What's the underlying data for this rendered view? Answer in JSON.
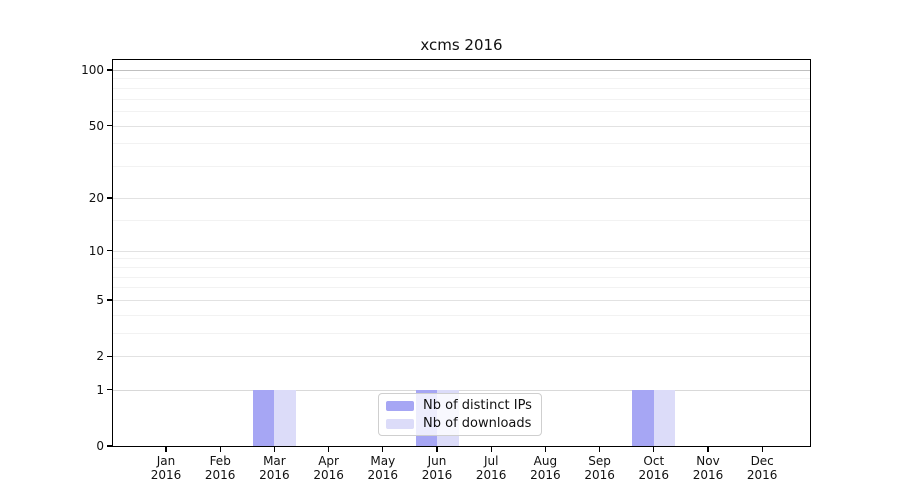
{
  "chart_data": {
    "type": "bar",
    "title": "xcms 2016",
    "year": "2016",
    "months": [
      "Jan",
      "Feb",
      "Mar",
      "Apr",
      "May",
      "Jun",
      "Jul",
      "Aug",
      "Sep",
      "Oct",
      "Nov",
      "Dec"
    ],
    "categories": [
      "Jan 2016",
      "Feb 2016",
      "Mar 2016",
      "Apr 2016",
      "May 2016",
      "Jun 2016",
      "Jul 2016",
      "Aug 2016",
      "Sep 2016",
      "Oct 2016",
      "Nov 2016",
      "Dec 2016"
    ],
    "series": [
      {
        "name": "Nb of distinct IPs",
        "color": "#a6a6f4",
        "values": [
          0,
          0,
          1,
          0,
          0,
          1,
          0,
          0,
          0,
          1,
          0,
          0
        ]
      },
      {
        "name": "Nb of downloads",
        "color": "#dcdcf9",
        "values": [
          0,
          0,
          1,
          0,
          0,
          1,
          0,
          0,
          0,
          1,
          0,
          0
        ]
      }
    ],
    "y_axis": {
      "scale": "log1p",
      "ticks": [
        0,
        1,
        2,
        5,
        10,
        20,
        50,
        100
      ],
      "minor_gridlines": [
        3,
        4,
        6,
        7,
        8,
        9,
        15,
        30,
        40,
        60,
        70,
        80,
        90
      ],
      "max": 113
    },
    "legend": {
      "position": "lower center"
    },
    "grid": true,
    "colors": {
      "bar_distinct_ips": "#a6a6f4",
      "bar_downloads": "#dcdcf9",
      "grid_major": "#e2e2e2",
      "grid_minor": "#f2f2f2",
      "grid_hundred": "#bfbfbf",
      "grid_one": "#d9d9d9",
      "axis": "#000000",
      "background": "#ffffff"
    }
  }
}
